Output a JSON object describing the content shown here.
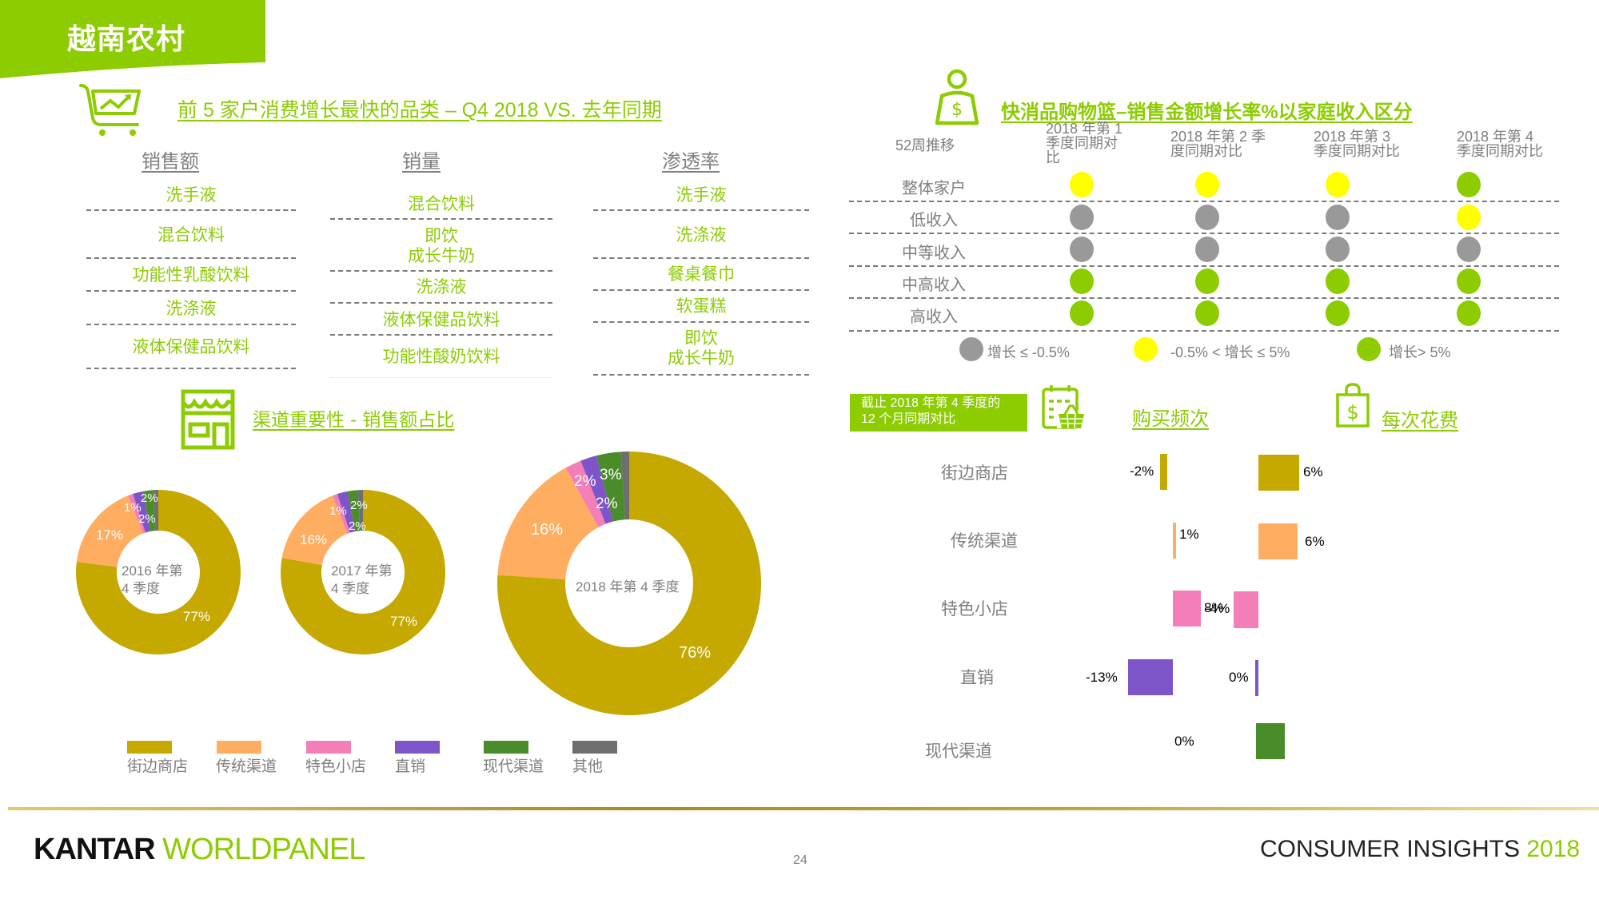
{
  "header": {
    "title": "越南农村",
    "banner_color": "#8ccc00"
  },
  "top_categories": {
    "title": "前 5 家户消费增长最快的品类 – Q4 2018 VS. 去年同期",
    "icon": "shopping-cart-trend-icon",
    "columns": [
      {
        "heading": "销售额",
        "items": [
          "洗手液",
          "混合饮料",
          "功能性乳酸饮料",
          "洗涤液",
          "液体保健品饮料"
        ]
      },
      {
        "heading": "销量",
        "items": [
          "混合饮料",
          "即饮\n成长牛奶",
          "洗涤液",
          "液体保健品饮料",
          "功能性酸奶饮料"
        ]
      },
      {
        "heading": "渗透率",
        "items": [
          "洗手液",
          "洗涤液",
          "餐桌餐巾",
          "软蛋糕",
          "即饮\n成长牛奶"
        ]
      }
    ]
  },
  "income_growth": {
    "title": "快消品购物篮–销售金额增长率%以家庭收入区分",
    "icon": "money-weight-person-icon",
    "corner_label": "52周推移",
    "columns": [
      "2018 年第 1\n季度同期对\n比",
      "2018 年第 2 季\n度同期对比",
      "2018 年第 3\n季度同期对比",
      "2018 年第 4\n季度同期对比"
    ],
    "rows": [
      {
        "label": "整体家户",
        "status": [
          "mid",
          "mid",
          "mid",
          "high"
        ]
      },
      {
        "label": "低收入",
        "status": [
          "low",
          "low",
          "low",
          "mid"
        ]
      },
      {
        "label": "中等收入",
        "status": [
          "low",
          "low",
          "low",
          "low"
        ]
      },
      {
        "label": "中高收入",
        "status": [
          "high",
          "high",
          "high",
          "high"
        ]
      },
      {
        "label": "高收入",
        "status": [
          "high",
          "high",
          "high",
          "high"
        ]
      }
    ],
    "legend": [
      {
        "key": "low",
        "label": "增长 ≤ -0.5%",
        "color": "#999999"
      },
      {
        "key": "mid",
        "label": "-0.5% < 增长 ≤ 5%",
        "color": "#ffff00"
      },
      {
        "key": "high",
        "label": "增长> 5%",
        "color": "#8ccc00"
      }
    ]
  },
  "channel_importance": {
    "title": "渠道重要性 - 销售额占比",
    "icon": "storefront-icon"
  },
  "channel_growth": {
    "note": "截止 2018 年第 4 季度的\n12 个月同期对比",
    "frequency_title": "购买频次",
    "frequency_icon": "calendar-basket-icon",
    "spend_title": "每次花费",
    "spend_icon": "shopping-bag-dollar-icon"
  },
  "chart_data": [
    {
      "type": "pie",
      "variant": "donut",
      "title": "2016 年第 4 季度",
      "categories": [
        "街边商店",
        "传统渠道",
        "特色小店",
        "直销",
        "现代渠道",
        "其他"
      ],
      "values": [
        77,
        17,
        1,
        2,
        2,
        1
      ],
      "labels": [
        "77%",
        "17%",
        "1%",
        "2%",
        "2%",
        ""
      ],
      "colors": [
        "#c5a800",
        "#ffad61",
        "#f47fb8",
        "#7e55c8",
        "#4b8c2a",
        "#6e6e6e"
      ]
    },
    {
      "type": "pie",
      "variant": "donut",
      "title": "2017 年第 4 季度",
      "categories": [
        "街边商店",
        "传统渠道",
        "特色小店",
        "直销",
        "现代渠道",
        "其他"
      ],
      "values": [
        77,
        16,
        1,
        2,
        2,
        1
      ],
      "labels": [
        "77%",
        "16%",
        "1%",
        "2%",
        "2%",
        ""
      ],
      "colors": [
        "#c5a800",
        "#ffad61",
        "#f47fb8",
        "#7e55c8",
        "#4b8c2a",
        "#6e6e6e"
      ]
    },
    {
      "type": "pie",
      "variant": "donut",
      "title": "2018 年第 4 季度",
      "categories": [
        "街边商店",
        "传统渠道",
        "特色小店",
        "直销",
        "现代渠道",
        "其他"
      ],
      "values": [
        76,
        16,
        2,
        2,
        3,
        1
      ],
      "labels": [
        "76%",
        "16%",
        "2%",
        "2%",
        "3%",
        ""
      ],
      "colors": [
        "#c5a800",
        "#ffad61",
        "#f47fb8",
        "#7e55c8",
        "#4b8c2a",
        "#6e6e6e"
      ]
    },
    {
      "type": "bar",
      "orientation": "horizontal",
      "title": "购买频次",
      "categories": [
        "街边商店",
        "传统渠道",
        "特色小店",
        "直销",
        "现代渠道"
      ],
      "values": [
        -2,
        1,
        8,
        -13,
        0
      ],
      "labels": [
        "-2%",
        "1%",
        "8%",
        "-13%",
        "0%"
      ],
      "colors": [
        "#c5a800",
        "#ffad61",
        "#f47fb8",
        "#7e55c8",
        "#4b8c2a"
      ]
    },
    {
      "type": "bar",
      "orientation": "horizontal",
      "title": "每次花费",
      "categories": [
        "街边商店",
        "传统渠道",
        "特色小店",
        "直销",
        "现代渠道"
      ],
      "values": [
        6,
        6,
        -4,
        0,
        4.5
      ],
      "labels": [
        "6%",
        "6%",
        "-4%",
        "0%",
        ""
      ],
      "colors": [
        "#c5a800",
        "#ffad61",
        "#f47fb8",
        "#7e55c8",
        "#4b8c2a"
      ]
    }
  ],
  "channel_legend": [
    {
      "label": "街边商店",
      "color": "#c5a800"
    },
    {
      "label": "传统渠道",
      "color": "#ffad61"
    },
    {
      "label": "特色小店",
      "color": "#f47fb8"
    },
    {
      "label": "直销",
      "color": "#7e55c8"
    },
    {
      "label": "现代渠道",
      "color": "#4b8c2a"
    },
    {
      "label": "其他",
      "color": "#6e6e6e"
    }
  ],
  "footer": {
    "brand_left": "KANTAR",
    "brand_right": "WORLDPANEL",
    "page_number": "24",
    "tagline": "CONSUMER INSIGHTS",
    "tagline_year": "2018"
  }
}
